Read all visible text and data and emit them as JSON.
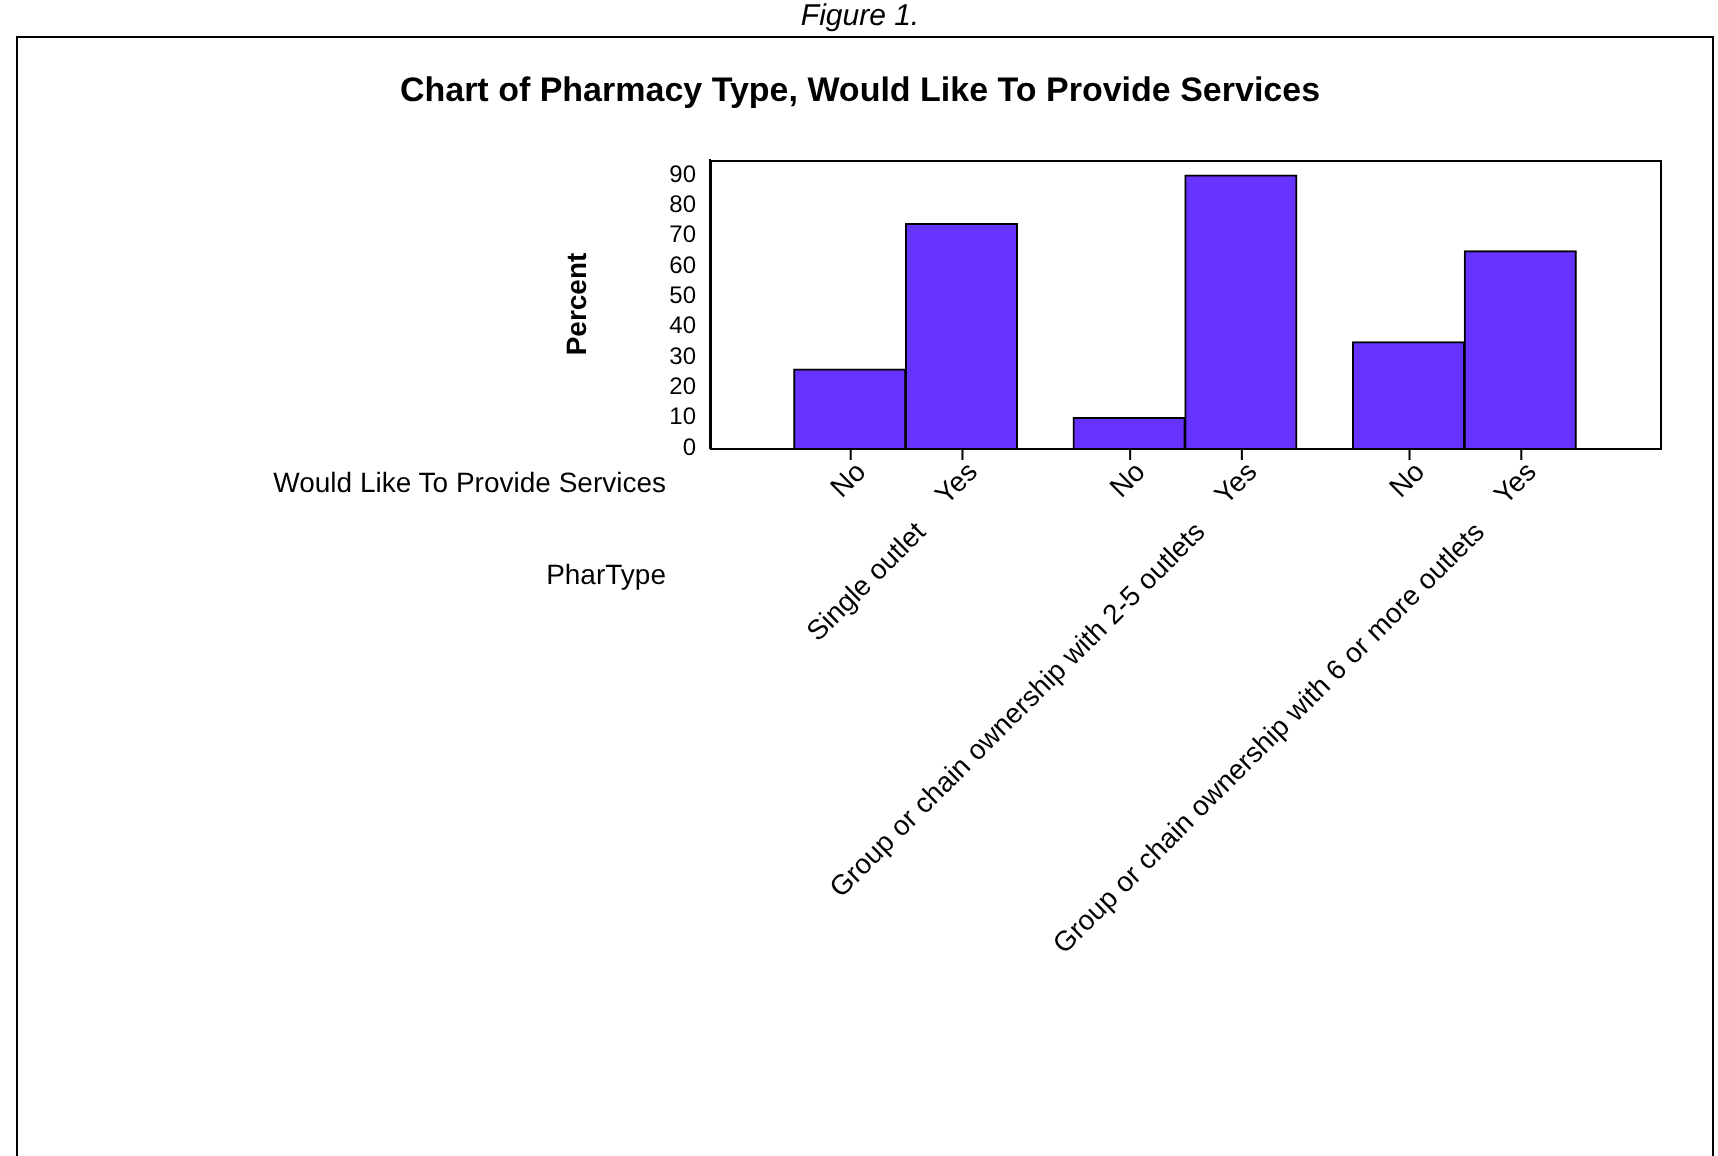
{
  "chart_data": {
    "type": "bar",
    "title": "Chart of Pharmacy Type, Would Like To Provide Services",
    "ylabel": "Percent",
    "xlabel": "PharType",
    "legend_title": "Would Like To Provide Services",
    "annotations": [
      "Figure 1."
    ],
    "categories": [
      "Single outlet",
      "Group or chain ownership with 2-5 outlets",
      "Group or chain ownership with 6 or more outlets"
    ],
    "series": [
      {
        "name": "No",
        "color": "#6633ff",
        "values": [
          26,
          10,
          35
        ]
      },
      {
        "name": "Yes",
        "color": "#6633ff",
        "values": [
          74,
          90,
          65
        ]
      }
    ],
    "ylim": [
      0,
      95
    ],
    "yticks": [
      0,
      10,
      20,
      30,
      40,
      50,
      60,
      70,
      80,
      90
    ],
    "grid": false,
    "legend": false
  }
}
